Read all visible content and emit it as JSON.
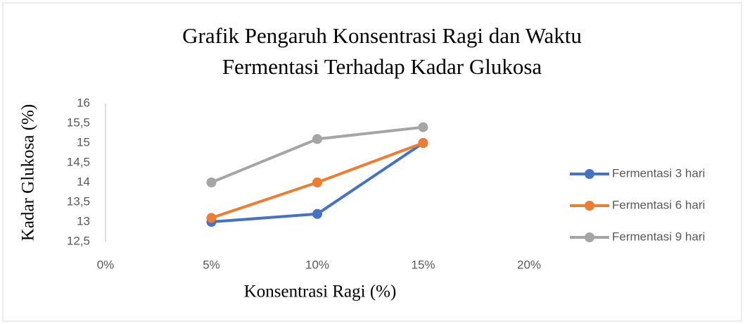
{
  "chart_data": {
    "type": "line",
    "title": [
      "Grafik Pengaruh Konsentrasi Ragi dan Waktu",
      "Fermentasi Terhadap Kadar Glukosa"
    ],
    "x_label": "Konsentrasi Ragi (%)",
    "y_label": "Kadar Glukosa (%)",
    "x": [
      5,
      10,
      15
    ],
    "series": [
      {
        "name": "Fermentasi 3 hari",
        "color": "#4472c4",
        "values": [
          13,
          13.2,
          15
        ]
      },
      {
        "name": "Fermentasi 6 hari",
        "color": "#ed7d31",
        "values": [
          13.1,
          14,
          15
        ]
      },
      {
        "name": "Fermentasi 9 hari",
        "color": "#a5a5a5",
        "values": [
          14,
          15.1,
          15.4
        ]
      }
    ],
    "xlim": [
      0,
      20
    ],
    "xticks": [
      {
        "value": 0,
        "label": "0%"
      },
      {
        "value": 5,
        "label": "5%"
      },
      {
        "value": 10,
        "label": "10%"
      },
      {
        "value": 15,
        "label": "15%"
      },
      {
        "value": 20,
        "label": "20%"
      }
    ],
    "ylim": [
      12.5,
      16
    ],
    "yticks": [
      {
        "value": 12.5,
        "label": "12,5"
      },
      13,
      {
        "value": 13.5,
        "label": "13,5"
      },
      14,
      {
        "value": 14.5,
        "label": "14,5"
      },
      15,
      {
        "value": 15.5,
        "label": "15,5"
      },
      16
    ],
    "grid": false,
    "legend": "right"
  }
}
